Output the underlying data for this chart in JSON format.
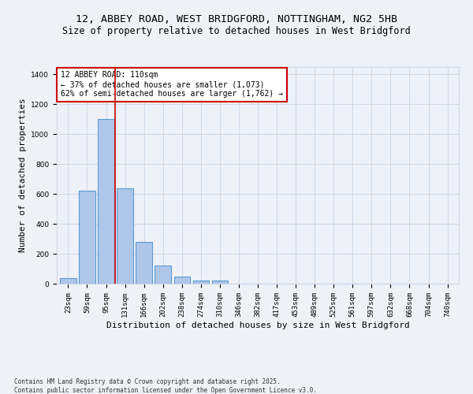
{
  "title_line1": "12, ABBEY ROAD, WEST BRIDGFORD, NOTTINGHAM, NG2 5HB",
  "title_line2": "Size of property relative to detached houses in West Bridgford",
  "xlabel": "Distribution of detached houses by size in West Bridgford",
  "ylabel": "Number of detached properties",
  "categories": [
    "23sqm",
    "59sqm",
    "95sqm",
    "131sqm",
    "166sqm",
    "202sqm",
    "238sqm",
    "274sqm",
    "310sqm",
    "346sqm",
    "382sqm",
    "417sqm",
    "453sqm",
    "489sqm",
    "525sqm",
    "561sqm",
    "597sqm",
    "632sqm",
    "668sqm",
    "704sqm",
    "740sqm"
  ],
  "bar_values": [
    35,
    620,
    1100,
    640,
    280,
    120,
    50,
    20,
    20,
    0,
    0,
    0,
    0,
    0,
    0,
    0,
    0,
    0,
    0,
    0,
    0
  ],
  "bar_color": "#aec6e8",
  "bar_edge_color": "#5b9bd5",
  "grid_color": "#d0d8e8",
  "background_color": "#eef2f8",
  "vline_x_index": 2.47,
  "vline_color": "#cc0000",
  "annotation_text": "12 ABBEY ROAD: 110sqm\n← 37% of detached houses are smaller (1,073)\n62% of semi-detached houses are larger (1,762) →",
  "annotation_box_color": "#ffffff",
  "annotation_box_edge": "#cc0000",
  "ylim": [
    0,
    1450
  ],
  "yticks": [
    0,
    200,
    400,
    600,
    800,
    1000,
    1200,
    1400
  ],
  "footnote": "Contains HM Land Registry data © Crown copyright and database right 2025.\nContains public sector information licensed under the Open Government Licence v3.0.",
  "title_fontsize": 9.5,
  "subtitle_fontsize": 8.5,
  "axis_label_fontsize": 8,
  "tick_fontsize": 6.5,
  "annotation_fontsize": 7,
  "footnote_fontsize": 5.5
}
